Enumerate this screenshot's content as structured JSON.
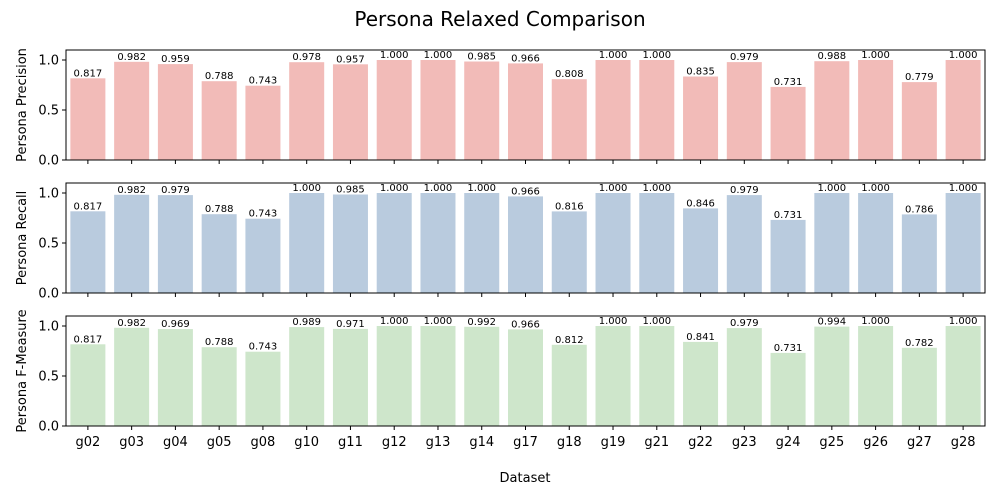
{
  "chart_data": {
    "type": "bar",
    "title": "Persona Relaxed Comparison",
    "xlabel": "Dataset",
    "categories": [
      "g02",
      "g03",
      "g04",
      "g05",
      "g08",
      "g10",
      "g11",
      "g12",
      "g13",
      "g14",
      "g17",
      "g18",
      "g19",
      "g21",
      "g22",
      "g23",
      "g24",
      "g25",
      "g26",
      "g27",
      "g28"
    ],
    "panels": [
      {
        "ylabel": "Persona Precision",
        "color": "#f2bbb8",
        "ylim": [
          0,
          1.1
        ],
        "yticks": [
          "0.0",
          "0.5",
          "1.0"
        ],
        "values": [
          0.817,
          0.982,
          0.959,
          0.788,
          0.743,
          0.978,
          0.957,
          1.0,
          1.0,
          0.985,
          0.966,
          0.808,
          1.0,
          1.0,
          0.835,
          0.979,
          0.731,
          0.988,
          1.0,
          0.779,
          1.0
        ],
        "labels": [
          "0.817",
          "0.982",
          "0.959",
          "0.788",
          "0.743",
          "0.978",
          "0.957",
          "1.000",
          "1.000",
          "0.985",
          "0.966",
          "0.808",
          "1.000",
          "1.000",
          "0.835",
          "0.979",
          "0.731",
          "0.988",
          "1.000",
          "0.779",
          "1.000"
        ]
      },
      {
        "ylabel": "Persona Recall",
        "color": "#b9cbde",
        "ylim": [
          0,
          1.1
        ],
        "yticks": [
          "0.0",
          "0.5",
          "1.0"
        ],
        "values": [
          0.817,
          0.982,
          0.979,
          0.788,
          0.743,
          1.0,
          0.985,
          1.0,
          1.0,
          1.0,
          0.966,
          0.816,
          1.0,
          1.0,
          0.846,
          0.979,
          0.731,
          1.0,
          1.0,
          0.786,
          1.0
        ],
        "labels": [
          "0.817",
          "0.982",
          "0.979",
          "0.788",
          "0.743",
          "1.000",
          "0.985",
          "1.000",
          "1.000",
          "1.000",
          "0.966",
          "0.816",
          "1.000",
          "1.000",
          "0.846",
          "0.979",
          "0.731",
          "1.000",
          "1.000",
          "0.786",
          "1.000"
        ]
      },
      {
        "ylabel": "Persona F-Measure",
        "color": "#cee6cb",
        "ylim": [
          0,
          1.1
        ],
        "yticks": [
          "0.0",
          "0.5",
          "1.0"
        ],
        "values": [
          0.817,
          0.982,
          0.969,
          0.788,
          0.743,
          0.989,
          0.971,
          1.0,
          1.0,
          0.992,
          0.966,
          0.812,
          1.0,
          1.0,
          0.841,
          0.979,
          0.731,
          0.994,
          1.0,
          0.782,
          1.0
        ],
        "labels": [
          "0.817",
          "0.982",
          "0.969",
          "0.788",
          "0.743",
          "0.989",
          "0.971",
          "1.000",
          "1.000",
          "0.992",
          "0.966",
          "0.812",
          "1.000",
          "1.000",
          "0.841",
          "0.979",
          "0.731",
          "0.994",
          "1.000",
          "0.782",
          "1.000"
        ]
      }
    ]
  }
}
